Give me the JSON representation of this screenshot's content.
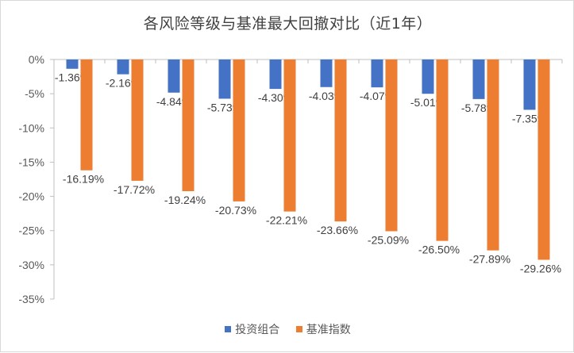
{
  "chart_data": {
    "type": "bar",
    "title": "各风险等级与基准最大回撤对比（近1年）",
    "xlabel": "",
    "ylabel": "",
    "ylim": [
      -35,
      0
    ],
    "yticks": [
      "0%",
      "-5%",
      "-10%",
      "-15%",
      "-20%",
      "-25%",
      "-30%",
      "-35%"
    ],
    "ytick_values": [
      0,
      -5,
      -10,
      -15,
      -20,
      -25,
      -30,
      -35
    ],
    "grid": false,
    "legend_position": "bottom",
    "categories": [
      "",
      "",
      "",
      "",
      "",
      "",
      "",
      "",
      "",
      ""
    ],
    "series": [
      {
        "name": "投资组合",
        "color": "#4472c4",
        "values": [
          -1.36,
          -2.16,
          -4.84,
          -5.73,
          -4.3,
          -4.03,
          -4.07,
          -5.01,
          -5.78,
          -7.35
        ],
        "labels": [
          "-1.36%",
          "-2.16%",
          "-4.84%",
          "-5.73%",
          "-4.30%",
          "-4.03%",
          "-4.07%",
          "-5.01%",
          "-5.78%",
          "-7.35%"
        ]
      },
      {
        "name": "基准指数",
        "color": "#ed7d31",
        "values": [
          -16.19,
          -17.72,
          -19.24,
          -20.73,
          -22.21,
          -23.66,
          -25.09,
          -26.5,
          -27.89,
          -29.26
        ],
        "labels": [
          "-16.19%",
          "-17.72%",
          "-19.24%",
          "-20.73%",
          "-22.21%",
          "-23.66%",
          "-25.09%",
          "-26.50%",
          "-27.89%",
          "-29.26%"
        ]
      }
    ]
  }
}
